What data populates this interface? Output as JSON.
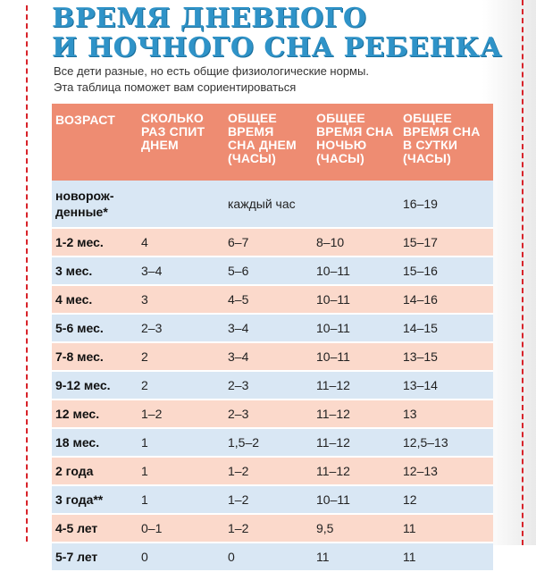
{
  "title": [
    "ВРЕМЯ ДНЕВНОГО",
    "И НОЧНОГО СНА РЕБЕНКА"
  ],
  "subtitle": [
    "Все дети разные, но есть общие физиологические нормы.",
    "Эта таблица поможет вам сориентироваться"
  ],
  "colors": {
    "title": "#2f93c8",
    "header_bg": "#ee8c72",
    "row_blue": "#d9e7f4",
    "row_pink": "#fbd9cb",
    "dashed_border": "#d8232a"
  },
  "table": {
    "headers": [
      [
        "ВОЗРАСТ"
      ],
      [
        "СКОЛЬКО",
        "РАЗ СПИТ",
        "ДНЕМ"
      ],
      [
        "ОБЩЕЕ",
        "ВРЕМЯ",
        "СНА ДНЕМ",
        "(ЧАСЫ)"
      ],
      [
        "ОБЩЕЕ",
        "ВРЕМЯ СНА",
        "НОЧЬЮ",
        "(ЧАСЫ)"
      ],
      [
        "ОБЩЕЕ",
        "ВРЕМЯ СНА",
        "В СУТКИ",
        "(ЧАСЫ)"
      ]
    ],
    "rows": [
      {
        "age": [
          "новорож-",
          "денные*"
        ],
        "naps": "",
        "day": "каждый час",
        "night": "",
        "total": "16–19"
      },
      {
        "age": [
          "1-2 мес."
        ],
        "naps": "4",
        "day": "6–7",
        "night": "8–10",
        "total": "15–17"
      },
      {
        "age": [
          "3 мес."
        ],
        "naps": "3–4",
        "day": "5–6",
        "night": "10–11",
        "total": "15–16"
      },
      {
        "age": [
          "4 мес."
        ],
        "naps": "3",
        "day": "4–5",
        "night": "10–11",
        "total": "14–16"
      },
      {
        "age": [
          "5-6 мес."
        ],
        "naps": "2–3",
        "day": "3–4",
        "night": "10–11",
        "total": "14–15"
      },
      {
        "age": [
          "7-8 мес."
        ],
        "naps": "2",
        "day": "3–4",
        "night": "10–11",
        "total": "13–15"
      },
      {
        "age": [
          "9-12 мес."
        ],
        "naps": "2",
        "day": "2–3",
        "night": "11–12",
        "total": "13–14"
      },
      {
        "age": [
          "12 мес."
        ],
        "naps": "1–2",
        "day": "2–3",
        "night": "11–12",
        "total": "13"
      },
      {
        "age": [
          "18 мес."
        ],
        "naps": "1",
        "day": "1,5–2",
        "night": "11–12",
        "total": "12,5–13"
      },
      {
        "age": [
          "2 года"
        ],
        "naps": "1",
        "day": "1–2",
        "night": "11–12",
        "total": "12–13"
      },
      {
        "age": [
          "3 года**"
        ],
        "naps": "1",
        "day": "1–2",
        "night": "10–11",
        "total": "12"
      },
      {
        "age": [
          "4-5 лет"
        ],
        "naps": "0–1",
        "day": "1–2",
        "night": "9,5",
        "total": "11"
      },
      {
        "age": [
          "5-7 лет"
        ],
        "naps": "0",
        "day": "0",
        "night": "11",
        "total": "11"
      }
    ]
  }
}
